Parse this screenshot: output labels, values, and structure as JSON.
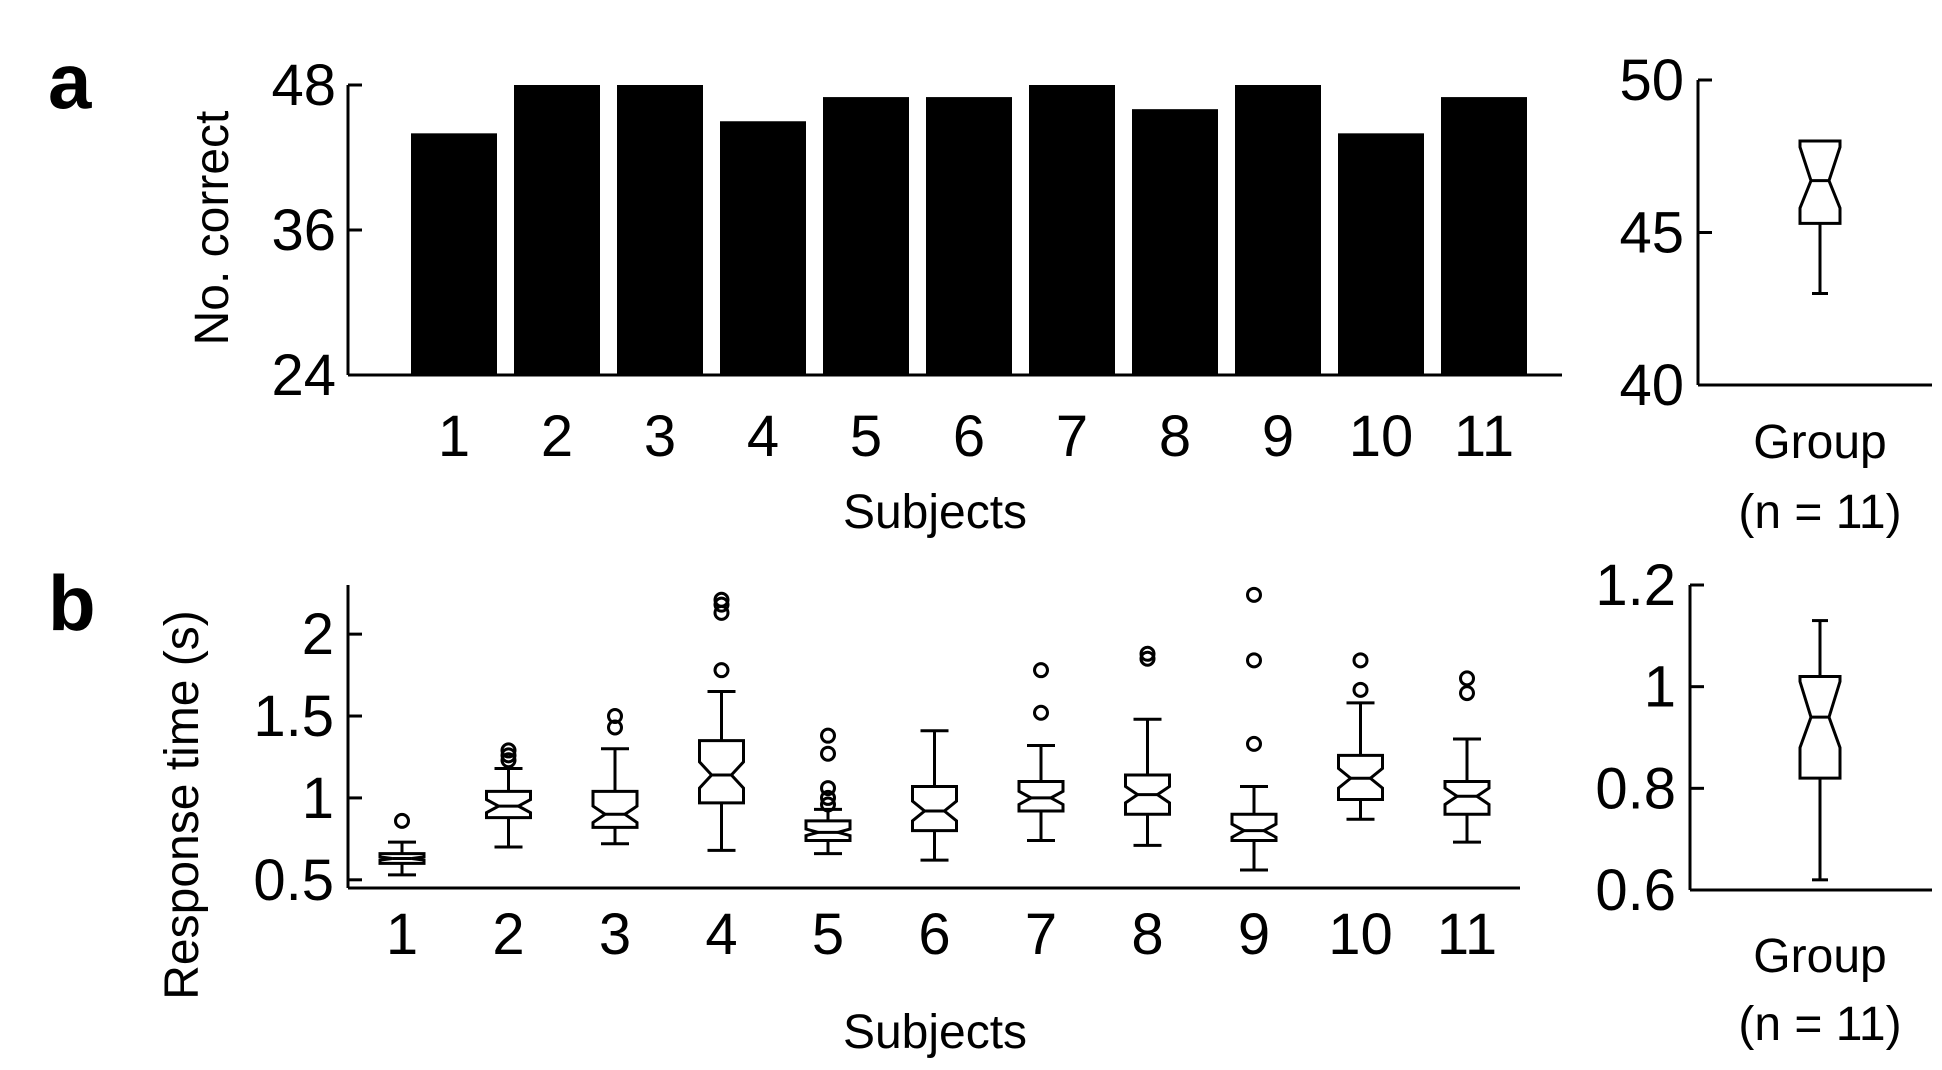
{
  "panels": {
    "a": {
      "letter": "a",
      "bar_xlabel": "Subjects",
      "group_label_1": "Group",
      "group_label_2": "(n = 11)"
    },
    "b": {
      "letter": "b",
      "box_xlabel": "Subjects",
      "group_label_1": "Group",
      "group_label_2": "(n = 11)"
    }
  },
  "colors": {
    "ink": "#000000",
    "background": "#ffffff"
  },
  "chart_data": [
    {
      "id": "a-bars",
      "type": "bar",
      "title": "",
      "xlabel": "Subjects",
      "ylabel": "No. correct",
      "categories": [
        "1",
        "2",
        "3",
        "4",
        "5",
        "6",
        "7",
        "8",
        "9",
        "10",
        "11"
      ],
      "values": [
        44,
        48,
        48,
        45,
        47,
        47,
        48,
        46,
        48,
        44,
        47
      ],
      "ylim": [
        24,
        48
      ],
      "yticks": [
        24,
        36,
        48
      ],
      "grid": false
    },
    {
      "id": "a-group",
      "type": "box",
      "xlabel": "Group\n(n = 11)",
      "ylabel": "",
      "ylim": [
        40,
        50
      ],
      "yticks": [
        40,
        45,
        50
      ],
      "boxes": [
        {
          "whisker_low": 43,
          "q1": 45.3,
          "median": 46.7,
          "q3": 48,
          "whisker_high": 48,
          "notch_low": 45.8,
          "notch_high": 47.8,
          "outliers": []
        }
      ],
      "grid": false
    },
    {
      "id": "b-boxes",
      "type": "box",
      "xlabel": "Subjects",
      "ylabel": "Response time (s)",
      "categories": [
        "1",
        "2",
        "3",
        "4",
        "5",
        "6",
        "7",
        "8",
        "9",
        "10",
        "11"
      ],
      "ylim": [
        0.45,
        2.3
      ],
      "yticks": [
        0.5,
        1,
        1.5,
        2
      ],
      "boxes": [
        {
          "whisker_low": 0.53,
          "q1": 0.6,
          "median": 0.63,
          "q3": 0.66,
          "whisker_high": 0.73,
          "notch_low": 0.62,
          "notch_high": 0.64,
          "outliers": [
            0.86
          ]
        },
        {
          "whisker_low": 0.7,
          "q1": 0.88,
          "median": 0.95,
          "q3": 1.04,
          "whisker_high": 1.18,
          "notch_low": 0.91,
          "notch_high": 0.99,
          "outliers": [
            1.23,
            1.26,
            1.29
          ]
        },
        {
          "whisker_low": 0.72,
          "q1": 0.82,
          "median": 0.9,
          "q3": 1.04,
          "whisker_high": 1.3,
          "notch_low": 0.85,
          "notch_high": 0.95,
          "outliers": [
            1.43,
            1.5
          ]
        },
        {
          "whisker_low": 0.68,
          "q1": 0.97,
          "median": 1.14,
          "q3": 1.35,
          "whisker_high": 1.65,
          "notch_low": 1.06,
          "notch_high": 1.22,
          "outliers": [
            1.78,
            2.13,
            2.18,
            2.21
          ]
        },
        {
          "whisker_low": 0.66,
          "q1": 0.74,
          "median": 0.79,
          "q3": 0.86,
          "whisker_high": 0.93,
          "notch_low": 0.77,
          "notch_high": 0.81,
          "outliers": [
            0.96,
            1.0,
            1.06,
            1.27,
            1.38
          ]
        },
        {
          "whisker_low": 0.62,
          "q1": 0.8,
          "median": 0.92,
          "q3": 1.07,
          "whisker_high": 1.41,
          "notch_low": 0.86,
          "notch_high": 0.98,
          "outliers": []
        },
        {
          "whisker_low": 0.74,
          "q1": 0.92,
          "median": 1.0,
          "q3": 1.1,
          "whisker_high": 1.32,
          "notch_low": 0.96,
          "notch_high": 1.04,
          "outliers": [
            1.52,
            1.78
          ]
        },
        {
          "whisker_low": 0.71,
          "q1": 0.9,
          "median": 1.02,
          "q3": 1.14,
          "whisker_high": 1.48,
          "notch_low": 0.97,
          "notch_high": 1.07,
          "outliers": [
            1.85,
            1.88
          ]
        },
        {
          "whisker_low": 0.56,
          "q1": 0.74,
          "median": 0.8,
          "q3": 0.9,
          "whisker_high": 1.07,
          "notch_low": 0.76,
          "notch_high": 0.84,
          "outliers": [
            1.33,
            1.84,
            2.24
          ]
        },
        {
          "whisker_low": 0.87,
          "q1": 0.99,
          "median": 1.12,
          "q3": 1.26,
          "whisker_high": 1.58,
          "notch_low": 1.06,
          "notch_high": 1.18,
          "outliers": [
            1.66,
            1.84
          ]
        },
        {
          "whisker_low": 0.73,
          "q1": 0.9,
          "median": 1.01,
          "q3": 1.1,
          "whisker_high": 1.36,
          "notch_low": 0.96,
          "notch_high": 1.06,
          "outliers": [
            1.64,
            1.73
          ]
        }
      ],
      "grid": false
    },
    {
      "id": "b-group",
      "type": "box",
      "xlabel": "Group\n(n = 11)",
      "ylabel": "",
      "ylim": [
        0.6,
        1.2
      ],
      "yticks": [
        0.6,
        0.8,
        1,
        1.2
      ],
      "ytick_labels": [
        "0.6",
        "0.8",
        "1",
        "1.2"
      ],
      "boxes": [
        {
          "whisker_low": 0.62,
          "q1": 0.82,
          "median": 0.94,
          "q3": 1.02,
          "whisker_high": 1.13,
          "notch_low": 0.88,
          "notch_high": 1.01,
          "outliers": []
        }
      ],
      "grid": false
    }
  ]
}
